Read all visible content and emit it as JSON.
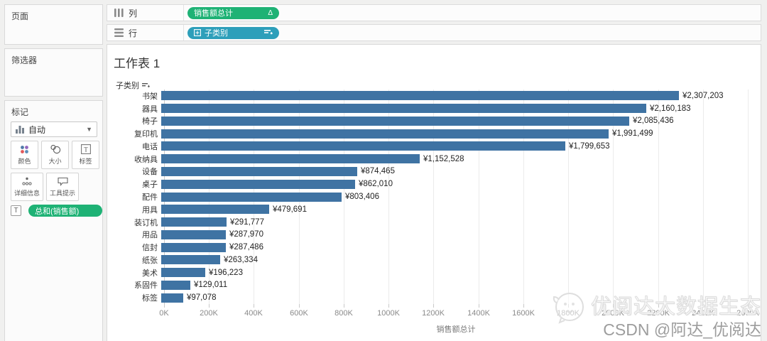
{
  "panels": {
    "pages_label": "页面",
    "filters_label": "筛选器"
  },
  "marks": {
    "title": "标记",
    "mark_type_label": "自动",
    "color_label": "颜色",
    "size_label": "大小",
    "label_label": "标签",
    "detail_label": "详细信息",
    "tooltip_label": "工具提示",
    "pill_prefix": "T",
    "pill_label": "总和(销售额)"
  },
  "shelves": {
    "columns_label": "列",
    "columns_pill": "销售额总计",
    "columns_pill_type_icon": "delta-icon",
    "rows_label": "行",
    "rows_pill": "子类别",
    "rows_pill_icons": [
      "plus-box-icon",
      "sort-descending-icon"
    ]
  },
  "sheet": {
    "title": "工作表 1",
    "row_field_label": "子类别"
  },
  "chart_data": {
    "type": "bar",
    "orientation": "horizontal",
    "title": "工作表 1",
    "categories": [
      "书架",
      "器具",
      "椅子",
      "复印机",
      "电话",
      "收纳具",
      "设备",
      "桌子",
      "配件",
      "用具",
      "装订机",
      "用品",
      "信封",
      "纸张",
      "美术",
      "系固件",
      "标签"
    ],
    "values": [
      2307203,
      2160183,
      2085436,
      1991499,
      1799653,
      1152528,
      874465,
      862010,
      803406,
      479691,
      291777,
      287970,
      287486,
      263334,
      196223,
      129011,
      97078
    ],
    "value_labels": [
      "¥2,307,203",
      "¥2,160,183",
      "¥2,085,436",
      "¥1,991,499",
      "¥1,799,653",
      "¥1,152,528",
      "¥874,465",
      "¥862,010",
      "¥803,406",
      "¥479,691",
      "¥291,777",
      "¥287,970",
      "¥287,486",
      "¥263,334",
      "¥196,223",
      "¥129,011",
      "¥97,078"
    ],
    "xlabel": "销售额总计",
    "ylabel": "子类别",
    "xlim": [
      0,
      2600000
    ],
    "xticks": [
      "0K",
      "200K",
      "400K",
      "600K",
      "800K",
      "1000K",
      "1200K",
      "1400K",
      "1600K",
      "1800K",
      "2000K",
      "2200K",
      "2400K",
      "2600K"
    ],
    "grid": true,
    "legend": false,
    "sort": "descending"
  },
  "colors": {
    "bar": "#3f73a3",
    "measure_pill": "#1eb275",
    "dimension_pill": "#2d9fba",
    "color_icon_dots": [
      "#4e79a7",
      "#9467bd",
      "#e15759",
      "#5b8db8"
    ]
  },
  "watermark": {
    "brand": "优阅达大数据生态",
    "credit": "CSDN @阿达_优阅达"
  }
}
